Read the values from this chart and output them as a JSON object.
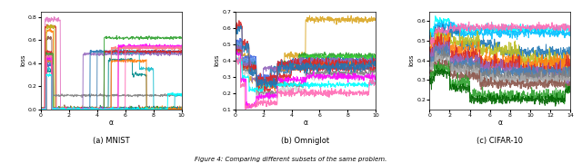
{
  "title": "Figure 4: Comparing different subsets of the same problem.",
  "subplots": [
    {
      "label": "(a) MNIST",
      "xlabel": "α",
      "ylabel": "loss",
      "xlim": [
        0,
        10
      ],
      "ylim": [
        0.0,
        0.85
      ],
      "yticks": [
        0.0,
        0.2,
        0.4,
        0.6,
        0.8
      ],
      "xticks": [
        0,
        2,
        4,
        6,
        8,
        10
      ]
    },
    {
      "label": "(b) Omniglot",
      "xlabel": "α",
      "ylabel": "loss",
      "xlim": [
        0,
        10
      ],
      "ylim": [
        0.1,
        0.7
      ],
      "yticks": [
        0.1,
        0.2,
        0.3,
        0.4,
        0.5,
        0.6,
        0.7
      ],
      "xticks": [
        0,
        2,
        4,
        6,
        8,
        10
      ]
    },
    {
      "label": "(c) CIFAR-10",
      "xlabel": "α",
      "ylabel": "loss",
      "xlim": [
        0,
        14
      ],
      "ylim": [
        0.15,
        0.65
      ],
      "yticks": [
        0.2,
        0.3,
        0.4,
        0.5,
        0.6
      ],
      "xticks": [
        0,
        2,
        4,
        6,
        8,
        10,
        12,
        14
      ]
    }
  ]
}
